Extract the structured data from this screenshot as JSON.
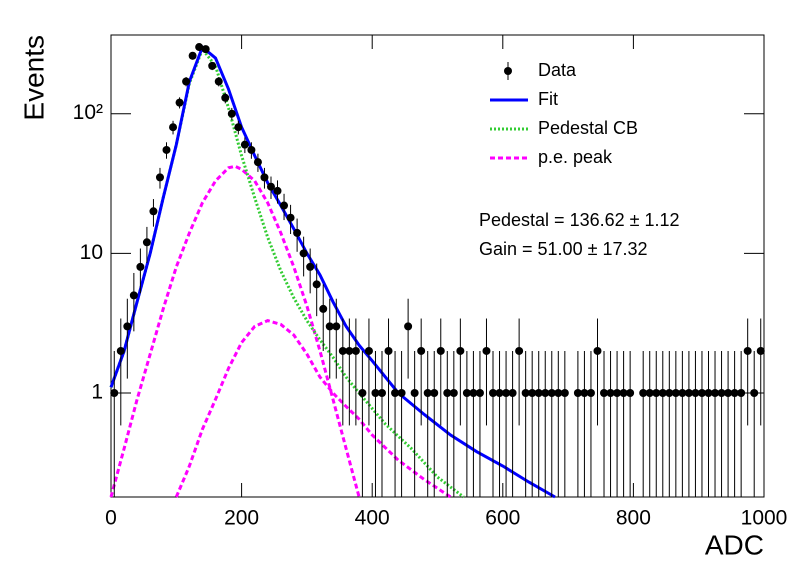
{
  "chart_data": {
    "type": "histogram-fit",
    "x_label": "ADC",
    "y_label": "Events",
    "log_y": true,
    "xlim": [
      0,
      1000
    ],
    "ylim": [
      0.18,
      366
    ],
    "xticks": [
      0,
      200,
      400,
      600,
      800,
      1000
    ],
    "yticks": [
      1,
      10,
      {
        "value": 100,
        "label": "10²"
      }
    ],
    "legend_position": "upper right",
    "annotations": [
      "Pedestal = 136.62 ± 1.12",
      "Gain = 51.00 ± 17.32"
    ],
    "series": [
      {
        "name": "Data",
        "kind": "points",
        "color": "#000000",
        "x": [
          5,
          15,
          25,
          35,
          45,
          55,
          65,
          75,
          85,
          95,
          105,
          115,
          125,
          135,
          145,
          155,
          165,
          175,
          185,
          195,
          205,
          215,
          225,
          235,
          245,
          255,
          265,
          275,
          285,
          295,
          305,
          315,
          325,
          335,
          345,
          355,
          365,
          375,
          385,
          395,
          405,
          415,
          425,
          435,
          445,
          455,
          465,
          475,
          485,
          495,
          505,
          515,
          525,
          535,
          545,
          555,
          565,
          575,
          585,
          595,
          605,
          615,
          625,
          635,
          645,
          655,
          665,
          675,
          685,
          695,
          705,
          715,
          725,
          735,
          745,
          755,
          765,
          775,
          785,
          795,
          805,
          815,
          825,
          835,
          845,
          855,
          865,
          875,
          885,
          895,
          905,
          915,
          925,
          935,
          945,
          955,
          965,
          975,
          985,
          995
        ],
        "values": [
          1,
          2,
          3,
          5,
          8,
          12,
          20,
          35,
          55,
          80,
          120,
          170,
          260,
          300,
          290,
          220,
          170,
          130,
          100,
          80,
          60,
          55,
          45,
          35,
          30,
          28,
          22,
          18,
          14,
          10,
          8,
          6,
          4,
          3,
          3,
          2,
          2,
          2,
          1,
          2,
          1,
          1,
          2,
          1,
          1,
          3,
          1,
          2,
          1,
          1,
          2,
          1,
          1,
          2,
          1,
          1,
          1,
          2,
          1,
          1,
          1,
          1,
          2,
          1,
          1,
          1,
          1,
          1,
          1,
          1,
          null,
          1,
          1,
          1,
          2,
          1,
          1,
          1,
          1,
          1,
          null,
          1,
          1,
          1,
          1,
          1,
          1,
          1,
          1,
          1,
          1,
          1,
          1,
          1,
          1,
          1,
          1,
          2,
          1,
          2
        ]
      },
      {
        "name": "Fit",
        "kind": "line",
        "color": "#0000ff",
        "dash": "solid",
        "x": [
          0,
          20,
          40,
          60,
          80,
          100,
          120,
          140,
          160,
          180,
          200,
          220,
          240,
          260,
          280,
          300,
          320,
          340,
          360,
          380,
          400,
          440,
          480,
          520,
          560,
          600,
          640,
          680
        ],
        "values": [
          1.1,
          2,
          4.5,
          10,
          25,
          60,
          170,
          300,
          250,
          150,
          80,
          50,
          32,
          22,
          15,
          10,
          7,
          4.5,
          3,
          2.2,
          1.7,
          1.0,
          0.7,
          0.5,
          0.38,
          0.3,
          0.23,
          0.18
        ]
      },
      {
        "name": "Pedestal CB",
        "kind": "line",
        "color": "#33cc33",
        "dash": "dotted",
        "x": [
          0,
          20,
          40,
          60,
          80,
          100,
          120,
          140,
          160,
          180,
          200,
          220,
          240,
          260,
          280,
          300,
          320,
          340,
          360,
          380,
          420,
          460,
          500,
          540
        ],
        "values": [
          1.1,
          2,
          4.5,
          10,
          25,
          60,
          165,
          290,
          220,
          110,
          50,
          25,
          13,
          7.5,
          4.8,
          3.3,
          2.4,
          1.8,
          1.3,
          1,
          0.6,
          0.4,
          0.25,
          0.18
        ]
      },
      {
        "name": "p.e. peak",
        "kind": "line",
        "color": "#ff00ff",
        "dash": "dashed",
        "x": [
          0,
          20,
          40,
          60,
          80,
          100,
          120,
          140,
          160,
          180,
          190,
          200,
          220,
          240,
          260,
          280,
          300,
          320,
          340,
          360,
          380,
          null,
          100,
          120,
          140,
          160,
          180,
          200,
          220,
          240,
          260,
          280,
          300,
          320,
          340,
          360,
          380,
          400,
          440,
          480,
          520
        ],
        "values": [
          0.18,
          0.4,
          0.9,
          1.9,
          4,
          8,
          14,
          23,
          33,
          41,
          42,
          40,
          33,
          23,
          14,
          8,
          4.2,
          2,
          0.9,
          0.4,
          0.18,
          null,
          0.18,
          0.3,
          0.55,
          0.9,
          1.5,
          2.3,
          3,
          3.3,
          3.1,
          2.6,
          1.9,
          1.3,
          1,
          0.8,
          0.65,
          0.5,
          0.33,
          0.24,
          0.18
        ]
      }
    ]
  }
}
